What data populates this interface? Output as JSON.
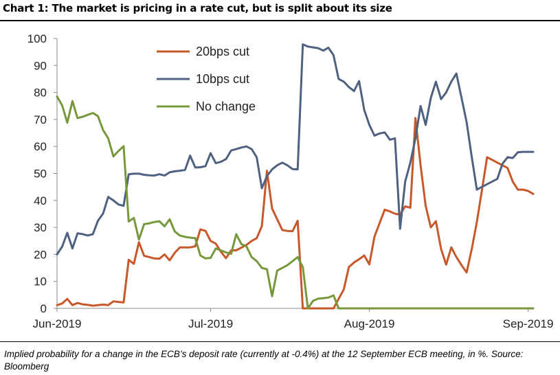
{
  "title": "Chart 1: The market is pricing in a rate cut, but is split about its size",
  "footnote": "Implied probability for a change in the ECB’s deposit rate (currently at -0.4%) at the 12 September ECB meeting, in %. Source: Bloomberg",
  "chart_data": {
    "type": "line",
    "title": "Chart 1: The market is pricing in a rate cut, but is split about its size",
    "xlabel": "",
    "ylabel": "",
    "ylim": [
      0,
      100
    ],
    "xlim": [
      0,
      93
    ],
    "yticks": [
      0,
      10,
      20,
      30,
      40,
      50,
      60,
      70,
      80,
      90,
      100
    ],
    "xticks": [
      {
        "label": "Jun-2019",
        "x": 0
      },
      {
        "label": "Jul-2019",
        "x": 30
      },
      {
        "label": "Aug-2019",
        "x": 61
      },
      {
        "label": "Sep-2019",
        "x": 92
      }
    ],
    "grid": false,
    "legend": "top-center",
    "x": [
      0,
      1,
      2,
      3,
      4,
      5,
      6,
      7,
      8,
      9,
      10,
      11,
      12,
      13,
      14,
      15,
      16,
      17,
      18,
      19,
      20,
      21,
      22,
      23,
      24,
      25,
      26,
      27,
      28,
      29,
      30,
      31,
      32,
      33,
      34,
      35,
      36,
      37,
      38,
      39,
      40,
      41,
      42,
      43,
      44,
      45,
      46,
      47,
      48,
      49,
      50,
      51,
      52,
      53,
      54,
      55,
      56,
      57,
      58,
      59,
      60,
      61,
      62,
      63,
      64,
      65,
      66,
      67,
      68,
      69,
      70,
      71,
      72,
      73,
      74,
      75,
      76,
      77,
      78,
      79,
      80,
      81,
      82,
      83,
      84,
      85,
      86,
      87,
      88,
      89,
      90,
      91,
      92,
      93
    ],
    "series": [
      {
        "name": "20bps cut",
        "color": "#c8572a",
        "values": [
          1.2,
          1.8,
          3.5,
          1.2,
          2,
          1.5,
          1.3,
          1,
          1.2,
          1.4,
          1.2,
          2.6,
          2.4,
          2.2,
          18,
          16.5,
          24.5,
          19.5,
          19,
          18.5,
          18.4,
          20,
          17.8,
          20.6,
          22.6,
          22.6,
          22.6,
          23,
          29.3,
          28.7,
          25,
          24,
          21,
          18.6,
          21.5,
          21.5,
          22.5,
          23.5,
          25,
          26,
          30.5,
          51,
          37,
          33,
          29,
          28.7,
          28.6,
          32.5,
          0,
          0,
          0,
          0,
          0,
          0,
          0,
          3.5,
          7,
          15.3,
          17,
          18.2,
          19.6,
          16.3,
          26.6,
          31.6,
          36.6,
          35.9,
          35.1,
          34.7,
          37.8,
          37.3,
          70.5,
          53,
          38,
          30,
          32.3,
          22,
          16.2,
          22.6,
          19,
          16,
          13.3,
          22,
          32,
          44,
          56,
          55,
          54,
          53,
          52,
          47,
          44,
          44,
          43.5,
          42.4
        ]
      },
      {
        "name": "10bps cut",
        "color": "#4e6180",
        "values": [
          20,
          22.9,
          28,
          22.2,
          27.8,
          27.5,
          27,
          27.5,
          32.5,
          35.2,
          41.3,
          40,
          38.5,
          38,
          49.7,
          49.9,
          49.9,
          49.5,
          49.3,
          49.2,
          49.7,
          49.2,
          50.4,
          50.8,
          51,
          51.3,
          56.6,
          52.2,
          52.3,
          52.7,
          57.5,
          53.8,
          54.3,
          55.3,
          58.5,
          59,
          59.6,
          60,
          59,
          56,
          44.5,
          49,
          51.5,
          53,
          54,
          53,
          51.6,
          51.5,
          97.8,
          97,
          96.7,
          96.4,
          95.5,
          96.6,
          93.8,
          85,
          84,
          82,
          80.5,
          84.2,
          73.5,
          68,
          64,
          64.8,
          65.2,
          62.5,
          63,
          29.5,
          47,
          54,
          63,
          75,
          68,
          78,
          84,
          77.5,
          80,
          84,
          87,
          78,
          69,
          56,
          44,
          45,
          46,
          47,
          48,
          53.6,
          56,
          55.7,
          57.8,
          58,
          58,
          58
        ]
      },
      {
        "name": "No change",
        "color": "#76973a",
        "values": [
          78.5,
          75.2,
          68.8,
          76.8,
          70.5,
          71,
          71.7,
          72.4,
          71.2,
          66,
          63,
          56.3,
          58.3,
          60.1,
          32.2,
          33.5,
          25.5,
          31.2,
          31.5,
          32,
          32.3,
          30.4,
          33,
          28.5,
          27,
          26.5,
          26.2,
          26,
          19.6,
          18.5,
          18.7,
          22.2,
          21.5,
          20.7,
          20.2,
          27.5,
          23.8,
          23,
          19,
          17.5,
          15,
          14.5,
          4.5,
          14,
          15,
          16,
          17.5,
          19,
          15.3,
          0,
          2.8,
          3.6,
          3.8,
          4,
          4.8,
          0,
          0,
          0,
          0,
          0,
          0,
          0,
          0,
          0,
          0,
          0,
          0,
          0,
          0,
          0,
          0,
          0,
          0,
          0,
          0,
          0,
          0,
          0,
          0,
          0,
          0,
          0,
          0,
          0,
          0,
          0,
          0,
          0,
          0,
          0,
          0,
          0,
          0,
          0
        ]
      }
    ]
  }
}
